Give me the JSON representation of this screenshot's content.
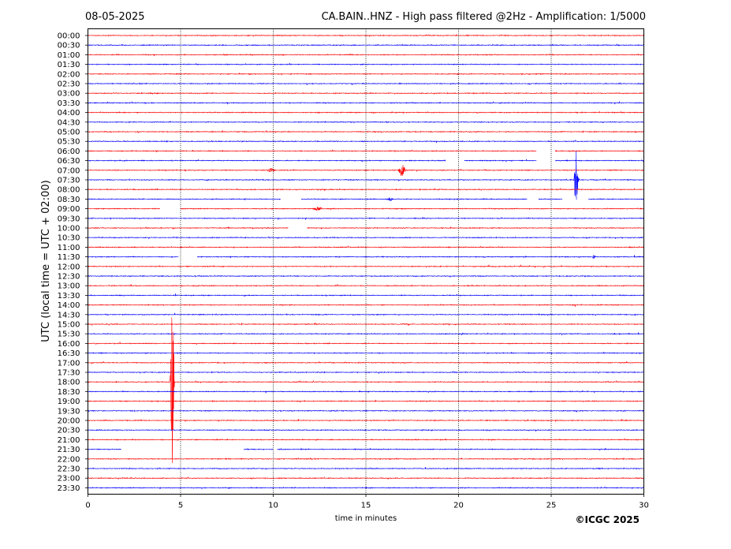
{
  "header": {
    "date": "08-05-2025",
    "title": "CA.BAIN..HNZ - High pass filtered @2Hz - Amplification: 1/5000"
  },
  "footer": {
    "copyright": "©ICGC 2025"
  },
  "chart_data": {
    "type": "line",
    "title": "CA.BAIN..HNZ - High pass filtered @2Hz - Amplification: 1/5000",
    "xlabel": "time in minutes",
    "ylabel": "UTC (local time = UTC + 02:00)",
    "xlim": [
      0,
      30
    ],
    "x_ticks": [
      "0",
      "5",
      "10",
      "15",
      "20",
      "25",
      "30"
    ],
    "x_grid_minutes": [
      5,
      10,
      15,
      20,
      25
    ],
    "row_labels": [
      "00:00",
      "00:30",
      "01:00",
      "01:30",
      "02:00",
      "02:30",
      "03:00",
      "03:30",
      "04:00",
      "04:30",
      "05:00",
      "05:30",
      "06:00",
      "06:30",
      "07:00",
      "07:30",
      "08:00",
      "08:30",
      "09:00",
      "09:30",
      "10:00",
      "10:30",
      "11:00",
      "11:30",
      "12:00",
      "12:30",
      "13:00",
      "13:30",
      "14:00",
      "14:30",
      "15:00",
      "15:30",
      "16:00",
      "16:30",
      "17:00",
      "17:30",
      "18:00",
      "18:30",
      "19:00",
      "19:30",
      "20:00",
      "20:30",
      "21:00",
      "21:30",
      "22:00",
      "22:30",
      "23:00",
      "23:30"
    ],
    "trace_colors": [
      "#ff0000",
      "#0000ff"
    ],
    "gaps": [
      {
        "row": "06:00",
        "from": 24.2,
        "to": 25.2
      },
      {
        "row": "06:30",
        "from": 19.3,
        "to": 20.3
      },
      {
        "row": "06:30",
        "from": 24.2,
        "to": 25.2
      },
      {
        "row": "08:30",
        "from": 10.4,
        "to": 11.5
      },
      {
        "row": "08:30",
        "from": 23.7,
        "to": 24.3
      },
      {
        "row": "08:30",
        "from": 25.6,
        "to": 27.0
      },
      {
        "row": "09:00",
        "from": 3.9,
        "to": 5.0
      },
      {
        "row": "10:00",
        "from": 10.8,
        "to": 11.8
      },
      {
        "row": "11:30",
        "from": 4.9,
        "to": 5.9
      },
      {
        "row": "21:30",
        "from": 1.8,
        "to": 8.4
      },
      {
        "row": "21:30",
        "from": 10.0,
        "to": 10.2
      }
    ],
    "events": [
      {
        "row": "07:00",
        "minute": 9.9,
        "amplitude": 3,
        "width": 0.3
      },
      {
        "row": "07:00",
        "minute": 16.95,
        "amplitude": 9,
        "width": 0.25
      },
      {
        "row": "07:30",
        "minute": 26.35,
        "amplitude": 40,
        "width": 0.15
      },
      {
        "row": "08:30",
        "minute": 16.3,
        "amplitude": 3,
        "width": 0.2
      },
      {
        "row": "09:00",
        "minute": 12.4,
        "amplitude": 3,
        "width": 0.3
      },
      {
        "row": "11:30",
        "minute": 27.3,
        "amplitude": 3,
        "width": 0.1
      },
      {
        "row": "18:00",
        "minute": 4.55,
        "amplitude": 140,
        "width": 0.12
      }
    ]
  }
}
